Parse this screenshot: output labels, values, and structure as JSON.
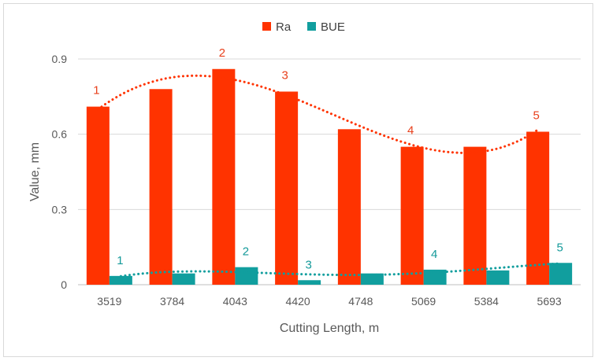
{
  "chart_data": {
    "type": "bar",
    "title": "",
    "xlabel": "Cutting Length, m",
    "ylabel": "Value, mm",
    "categories": [
      "3519",
      "3784",
      "4043",
      "4420",
      "4748",
      "5069",
      "5384",
      "5693"
    ],
    "ylim": [
      0,
      0.9
    ],
    "yticks": [
      "0",
      "0.3",
      "0.6",
      "0.9"
    ],
    "ytick_values": [
      0,
      0.3,
      0.6,
      0.9
    ],
    "grid": true,
    "legend_position": "top-center",
    "series": [
      {
        "name": "Ra",
        "color": "#ff3300",
        "values": [
          0.71,
          0.78,
          0.86,
          0.77,
          0.62,
          0.55,
          0.55,
          0.61
        ],
        "trendline": "polynomial-dotted",
        "annotations": [
          {
            "category_index": 0,
            "label": "1"
          },
          {
            "category_index": 2,
            "label": "2"
          },
          {
            "category_index": 3,
            "label": "3"
          },
          {
            "category_index": 5,
            "label": "4"
          },
          {
            "category_index": 7,
            "label": "5"
          }
        ]
      },
      {
        "name": "BUE",
        "color": "#119e9e",
        "values": [
          0.035,
          0.045,
          0.07,
          0.018,
          0.045,
          0.06,
          0.057,
          0.087
        ],
        "trendline": "polynomial-dotted",
        "annotations": [
          {
            "category_index": 0,
            "label": "1"
          },
          {
            "category_index": 2,
            "label": "2"
          },
          {
            "category_index": 3,
            "label": "3"
          },
          {
            "category_index": 5,
            "label": "4"
          },
          {
            "category_index": 7,
            "label": "5"
          }
        ]
      }
    ]
  }
}
